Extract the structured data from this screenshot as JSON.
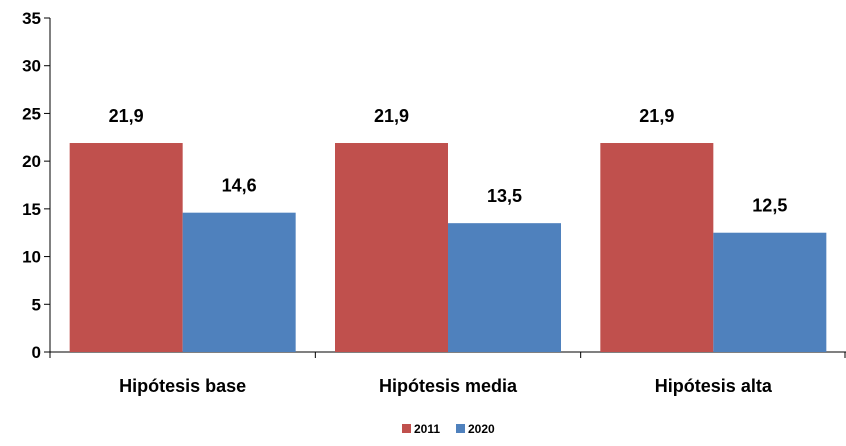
{
  "chart_data": {
    "type": "bar",
    "categories": [
      "Hipótesis base",
      "Hipótesis media",
      "Hipótesis alta"
    ],
    "series": [
      {
        "name": "2011",
        "values": [
          21.9,
          21.9,
          21.9
        ],
        "labels": [
          "21,9",
          "21,9",
          "21,9"
        ],
        "color": "#C0504D"
      },
      {
        "name": "2020",
        "values": [
          14.6,
          13.5,
          12.5
        ],
        "labels": [
          "14,6",
          "13,5",
          "12,5"
        ],
        "color": "#4F81BD"
      }
    ],
    "ylim": [
      0,
      35
    ],
    "yticks": [
      0,
      5,
      10,
      15,
      20,
      25,
      30,
      35
    ],
    "grid": false,
    "legend": "bottom-center"
  }
}
